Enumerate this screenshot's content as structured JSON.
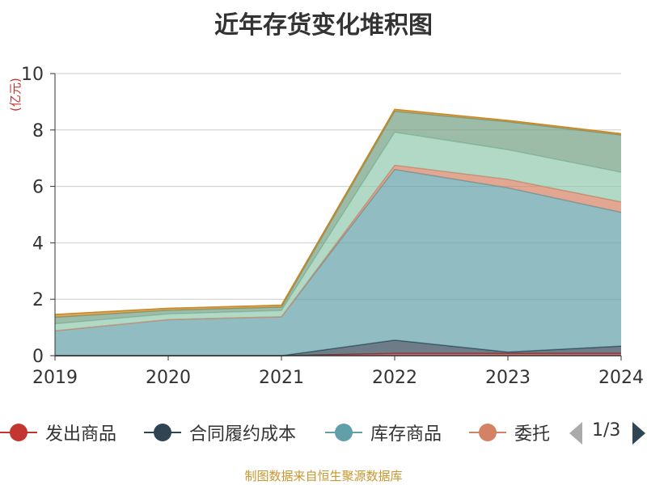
{
  "chart_data": {
    "type": "area",
    "stacked": true,
    "title": "近年存货变化堆积图",
    "ylabel": "(亿元)",
    "x": [
      "2019",
      "2020",
      "2021",
      "2022",
      "2023",
      "2024"
    ],
    "ylim": [
      0,
      10
    ],
    "yticks": [
      0,
      2,
      4,
      6,
      8,
      10
    ],
    "grid": true,
    "legend_position": "bottom",
    "series": [
      {
        "name": "发出商品",
        "color": "#c23531",
        "values": [
          0,
          0,
          0,
          0.08,
          0.08,
          0.08
        ]
      },
      {
        "name": "合同履约成本",
        "color": "#2f4554",
        "values": [
          0,
          0,
          0,
          0.47,
          0.05,
          0.26
        ]
      },
      {
        "name": "库存商品",
        "color": "#61a0a8",
        "values": [
          0.88,
          1.28,
          1.38,
          6.05,
          5.82,
          4.74
        ]
      },
      {
        "name": "委托",
        "color": "#d48265",
        "values": [
          0,
          0,
          0,
          0.15,
          0.3,
          0.37
        ]
      },
      {
        "name": "",
        "color": "#91c7ae",
        "values": [
          0.25,
          0.2,
          0.22,
          1.17,
          1.05,
          1.05
        ]
      },
      {
        "name": "",
        "color": "#749f83",
        "values": [
          0.23,
          0.13,
          0.12,
          0.74,
          0.99,
          1.32
        ]
      },
      {
        "name": "",
        "color": "#ca8622",
        "values": [
          0.1,
          0.07,
          0.07,
          0.07,
          0.05,
          0.05
        ]
      }
    ]
  },
  "legend_items": [
    {
      "label": "发出商品",
      "color": "#c23531"
    },
    {
      "label": "合同履约成本",
      "color": "#2f4554"
    },
    {
      "label": "库存商品",
      "color": "#61a0a8"
    },
    {
      "label": "委托",
      "color": "#d48265"
    }
  ],
  "pager": {
    "text": "1/3"
  },
  "footer": {
    "source": "制图数据来自恒生聚源数据库"
  }
}
